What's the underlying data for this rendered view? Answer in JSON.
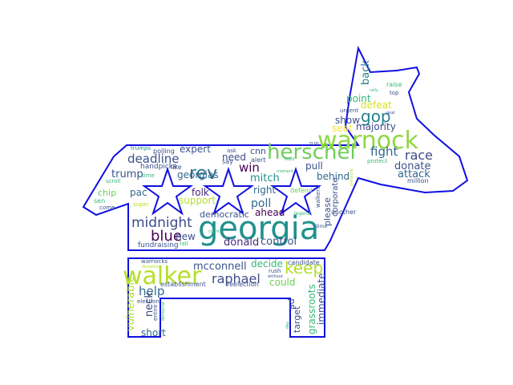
{
  "colors": {
    "outline": "#1010e0",
    "palette": [
      "#440154",
      "#3b528b",
      "#21918c",
      "#5ec962",
      "#fde725",
      "#31688e",
      "#35b779",
      "#90d743"
    ]
  },
  "words": [
    {
      "text": "georgia",
      "color": "#21918c"
    },
    {
      "text": "warnock",
      "color": "#90d743"
    },
    {
      "text": "walker",
      "color": "#b5de2b"
    },
    {
      "text": "herschel",
      "color": "#6ece58"
    },
    {
      "text": "midnight",
      "color": "#3e4a89"
    },
    {
      "text": "blue",
      "color": "#440154"
    },
    {
      "text": "rev",
      "color": "#2c728e"
    },
    {
      "text": "gop",
      "color": "#26828e"
    },
    {
      "text": "deadline",
      "color": "#3b528b"
    },
    {
      "text": "keep",
      "color": "#b5de2b"
    },
    {
      "text": "raphael",
      "color": "#3e4a89"
    },
    {
      "text": "mcconnell",
      "color": "#3b528b"
    },
    {
      "text": "help",
      "color": "#31688e"
    },
    {
      "text": "donald",
      "color": "#472d7b"
    },
    {
      "text": "control",
      "color": "#3b528b"
    },
    {
      "text": "win",
      "color": "#440154"
    },
    {
      "text": "poll",
      "color": "#31688e"
    },
    {
      "text": "race",
      "color": "#3e4a89"
    },
    {
      "text": "fight",
      "color": "#31688e"
    },
    {
      "text": "donate",
      "color": "#3b528b"
    },
    {
      "text": "attack",
      "color": "#31688e"
    },
    {
      "text": "point",
      "color": "#35b779"
    },
    {
      "text": "defeat",
      "color": "#d8e219"
    },
    {
      "text": "majority",
      "color": "#3e4a89"
    },
    {
      "text": "show",
      "color": "#3b528b"
    },
    {
      "text": "seat",
      "color": "#fde725"
    },
    {
      "text": "back",
      "color": "#26828e"
    },
    {
      "text": "trump",
      "color": "#3b528b"
    },
    {
      "text": "expert",
      "color": "#3b528b"
    },
    {
      "text": "georgias",
      "color": "#31688e"
    },
    {
      "text": "need",
      "color": "#3e4a89"
    },
    {
      "text": "cnn",
      "color": "#3b528b"
    },
    {
      "text": "mitch",
      "color": "#21918c"
    },
    {
      "text": "pull",
      "color": "#3b528b"
    },
    {
      "text": "behind",
      "color": "#31688e"
    },
    {
      "text": "right",
      "color": "#31688e"
    },
    {
      "text": "ahead",
      "color": "#440154"
    },
    {
      "text": "democratic",
      "color": "#3b528b"
    },
    {
      "text": "support",
      "color": "#b5de2b"
    },
    {
      "text": "folk",
      "color": "#482878"
    },
    {
      "text": "new",
      "color": "#3b528b"
    },
    {
      "text": "pac",
      "color": "#31688e"
    },
    {
      "text": "chip",
      "color": "#6ece58"
    },
    {
      "text": "decide",
      "color": "#35b779"
    },
    {
      "text": "could",
      "color": "#6ece58"
    },
    {
      "text": "neck",
      "color": "#3e4a89"
    },
    {
      "text": "short",
      "color": "#31688e"
    },
    {
      "text": "vulnerable",
      "color": "#b5de2b"
    },
    {
      "text": "grassroots",
      "color": "#35b779"
    },
    {
      "text": "immediate",
      "color": "#3b528b"
    },
    {
      "text": "target",
      "color": "#3b528b"
    },
    {
      "text": "ad",
      "color": "#3b528b"
    },
    {
      "text": "please",
      "color": "#3b528b"
    },
    {
      "text": "corporate",
      "color": "#3b528b"
    },
    {
      "text": "candidate",
      "color": "#3b528b"
    },
    {
      "text": "handpicke",
      "color": "#3b528b"
    },
    {
      "text": "like",
      "color": "#3b528b"
    },
    {
      "text": "polling",
      "color": "#3e4a89"
    },
    {
      "text": "fundraising",
      "color": "#3b528b"
    },
    {
      "text": "establishment",
      "color": "#3b528b"
    },
    {
      "text": "reelection",
      "color": "#3b528b"
    },
    {
      "text": "warnocks",
      "color": "#3b528b"
    },
    {
      "text": "election",
      "color": "#3b528b"
    },
    {
      "text": "entire",
      "color": "#3b528b"
    },
    {
      "text": "defend",
      "color": "#6ece58"
    },
    {
      "text": "alert",
      "color": "#3b528b"
    },
    {
      "text": "say",
      "color": "#3b528b"
    },
    {
      "text": "ask",
      "color": "#3b528b"
    },
    {
      "text": "urgent",
      "color": "#3b528b"
    },
    {
      "text": "another",
      "color": "#3b528b"
    },
    {
      "text": "million",
      "color": "#3b528b"
    },
    {
      "text": "protect",
      "color": "#35b779"
    },
    {
      "text": "raise",
      "color": "#35b779"
    },
    {
      "text": "top",
      "color": "#3b528b"
    },
    {
      "text": "sen",
      "color": "#35b779"
    },
    {
      "text": "come",
      "color": "#3b528b"
    },
    {
      "text": "super",
      "color": "#b5de2b"
    },
    {
      "text": "time",
      "color": "#35b779"
    },
    {
      "text": "scroll",
      "color": "#35b779"
    },
    {
      "text": "trumps",
      "color": "#21918c"
    },
    {
      "text": "run",
      "color": "#3b528b"
    },
    {
      "text": "walkers",
      "color": "#3b528b"
    },
    {
      "text": "legend",
      "color": "#35b779"
    },
    {
      "text": "dime",
      "color": "#3b528b"
    },
    {
      "text": "fall",
      "color": "#35b779"
    },
    {
      "text": "rush",
      "color": "#3b528b"
    },
    {
      "text": "without",
      "color": "#3b528b"
    },
    {
      "text": "donation",
      "color": "#b5de2b"
    },
    {
      "text": "rally",
      "color": "#35b779"
    },
    {
      "text": "goal",
      "color": "#3b528b"
    },
    {
      "text": "flood",
      "color": "#35b779"
    },
    {
      "text": "moment",
      "color": "#35b779"
    },
    {
      "text": "count",
      "color": "#35b779"
    },
    {
      "text": "day",
      "color": "#35b779"
    },
    {
      "text": "democrat",
      "color": "#35b779"
    },
    {
      "text": "pressure",
      "color": "#b5de2b"
    }
  ]
}
